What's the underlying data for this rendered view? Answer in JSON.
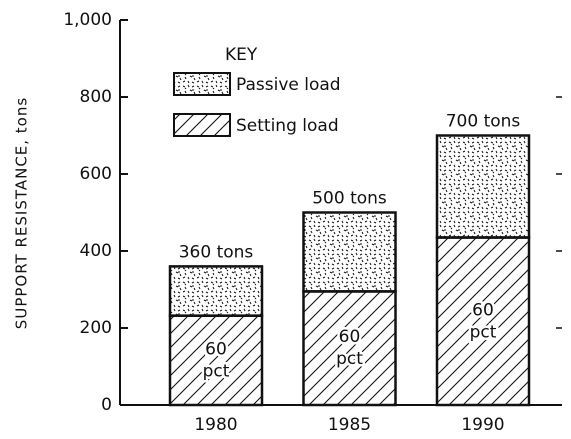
{
  "chart_data": {
    "type": "stacked_bar",
    "ylabel": "SUPPORT RESISTANCE, tons",
    "categories": [
      "1980",
      "1985",
      "1990"
    ],
    "series": [
      {
        "name": "Setting load",
        "color": "#111111",
        "values": [
          232,
          295,
          435
        ]
      },
      {
        "name": "Passive load",
        "color": "#111111",
        "values": [
          128,
          205,
          265
        ]
      }
    ],
    "total_labels": [
      "360 tons",
      "500 tons",
      "700 tons"
    ],
    "inner_labels": [
      [
        "60",
        "pct"
      ],
      [
        "60",
        "pct"
      ],
      [
        "60",
        "pct"
      ]
    ],
    "legend_title": "KEY",
    "ylim": [
      0,
      1000
    ],
    "yticks": [
      0,
      200,
      400,
      600,
      800,
      {
        "value": 1000,
        "label": "1,000"
      }
    ]
  }
}
